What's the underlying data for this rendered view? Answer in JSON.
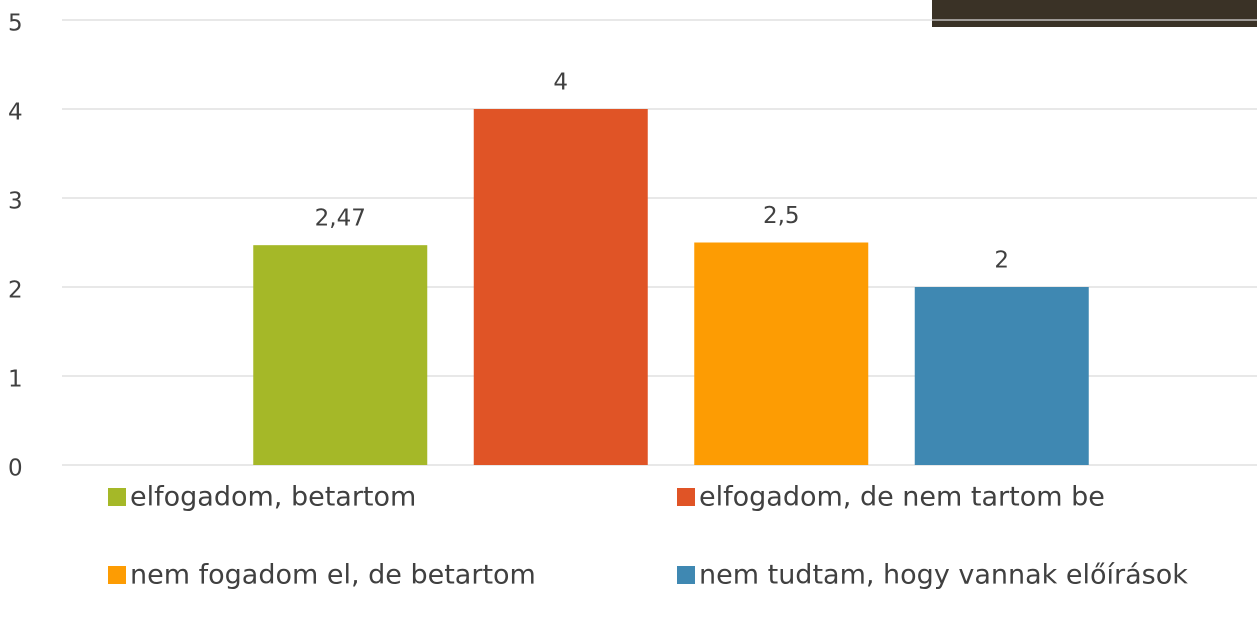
{
  "chart_data": {
    "type": "bar",
    "categories": [
      null
    ],
    "series": [
      {
        "name": "elfogadom, betartom",
        "color": "#a5b828",
        "values": [
          2.47
        ],
        "value_labels": [
          "2,47"
        ]
      },
      {
        "name": "elfogadom, de nem tartom be",
        "color": "#e05426",
        "values": [
          4
        ],
        "value_labels": [
          "4"
        ]
      },
      {
        "name": "nem fogadom el, de betartom",
        "color": "#fd9c03",
        "values": [
          2.5
        ],
        "value_labels": [
          "2,5"
        ]
      },
      {
        "name": "nem tudtam, hogy vannak előírások",
        "color": "#3f88b2",
        "values": [
          2
        ],
        "value_labels": [
          "2"
        ]
      }
    ],
    "ylim": [
      0,
      5
    ],
    "yticks": [
      0,
      1,
      2,
      3,
      4,
      5
    ],
    "grid": true,
    "legend": "bottom"
  }
}
